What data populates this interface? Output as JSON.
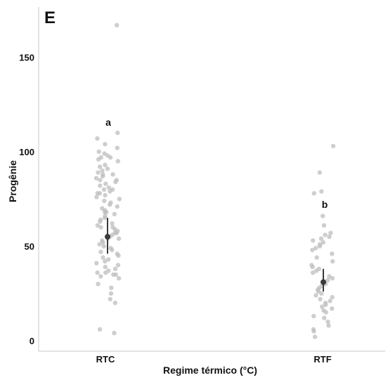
{
  "chart_data": {
    "type": "scatter",
    "panel_label": "E",
    "xlabel": "Regime térmico (°C)",
    "ylabel": "Progênie",
    "categories": [
      "RTC",
      "RTF"
    ],
    "ylim": [
      0,
      170
    ],
    "yticks": [
      0,
      50,
      100,
      150
    ],
    "grid": false,
    "colors": {
      "points": "#bdbdbd",
      "summary": "#3a3a3a",
      "axis": "#c8c8c8"
    },
    "summary": [
      {
        "category": "RTC",
        "mean": 55,
        "lower": 46,
        "upper": 65,
        "annotation": "a"
      },
      {
        "category": "RTF",
        "mean": 31,
        "lower": 26,
        "upper": 38,
        "annotation": "b"
      }
    ],
    "points": [
      {
        "category": "RTC",
        "values": [
          167,
          110,
          107,
          104,
          102,
          100,
          99,
          98,
          97,
          97,
          96,
          95,
          93,
          92,
          91,
          90,
          89,
          88,
          88,
          87,
          86,
          85,
          85,
          84,
          83,
          82,
          81,
          80,
          80,
          79,
          78,
          78,
          77,
          76,
          75,
          74,
          73,
          72,
          71,
          70,
          69,
          68,
          68,
          67,
          66,
          65,
          64,
          63,
          62,
          61,
          60,
          60,
          59,
          58,
          57,
          57,
          56,
          55,
          54,
          54,
          53,
          52,
          51,
          50,
          49,
          48,
          47,
          46,
          45,
          44,
          43,
          42,
          41,
          40,
          39,
          38,
          37,
          36,
          36,
          35,
          35,
          34,
          33,
          30,
          28,
          25,
          22,
          20,
          6,
          4
        ]
      },
      {
        "category": "RTF",
        "values": [
          103,
          89,
          79,
          78,
          66,
          61,
          57,
          56,
          55,
          54,
          53,
          52,
          51,
          50,
          49,
          48,
          46,
          44,
          42,
          40,
          39,
          38,
          37,
          36,
          34,
          33,
          32,
          30,
          29,
          28,
          27,
          26,
          25,
          24,
          23,
          22,
          21,
          20,
          19,
          18,
          17,
          16,
          15,
          13,
          12,
          10,
          8,
          6,
          5,
          2
        ]
      }
    ]
  }
}
